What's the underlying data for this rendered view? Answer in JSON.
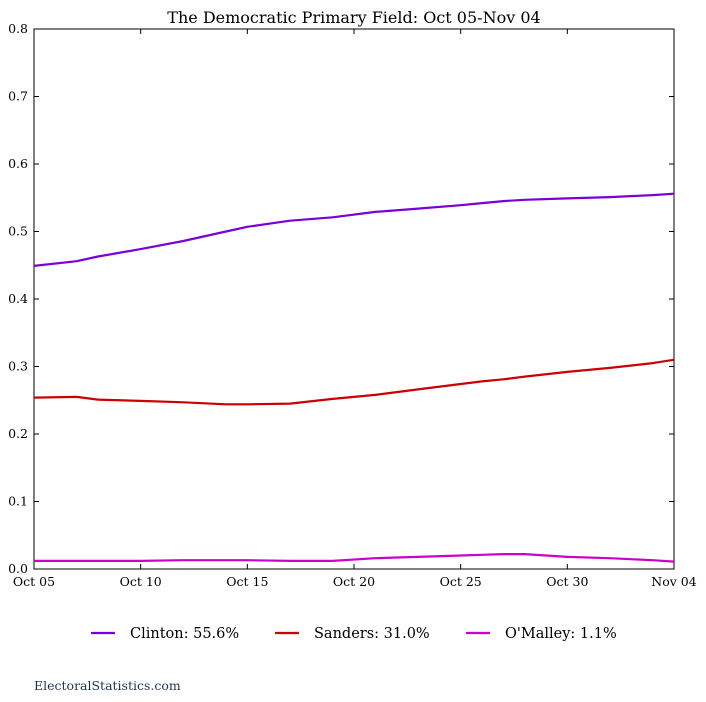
{
  "chart_data": {
    "type": "line",
    "title": "The Democratic Primary Field: Oct 05-Nov 04",
    "xlabel": "",
    "ylabel": "",
    "x_tick_labels": [
      "Oct 05",
      "Oct 10",
      "Oct 15",
      "Oct 20",
      "Oct 25",
      "Oct 30",
      "Nov 04"
    ],
    "x_tick_days": [
      0,
      5,
      10,
      15,
      20,
      25,
      30
    ],
    "xlim_days": [
      0,
      30
    ],
    "ylim": [
      0.0,
      0.8
    ],
    "y_ticks": [
      "0.0",
      "0.1",
      "0.2",
      "0.3",
      "0.4",
      "0.5",
      "0.6",
      "0.7",
      "0.8"
    ],
    "grid": false,
    "legend_position": "bottom-center",
    "x": [
      "Oct 05",
      "Oct 07",
      "Oct 08",
      "Oct 10",
      "Oct 12",
      "Oct 14",
      "Oct 15",
      "Oct 17",
      "Oct 19",
      "Oct 21",
      "Oct 23",
      "Oct 25",
      "Oct 26",
      "Oct 27",
      "Oct 28",
      "Oct 30",
      "Nov 01",
      "Nov 03",
      "Nov 04"
    ],
    "series": [
      {
        "name": "Clinton: 55.6%",
        "color": "#7a00d6",
        "values": [
          0.449,
          0.456,
          0.463,
          0.474,
          0.486,
          0.5,
          0.507,
          0.516,
          0.521,
          0.529,
          0.534,
          0.539,
          0.542,
          0.545,
          0.547,
          0.549,
          0.551,
          0.554,
          0.556
        ]
      },
      {
        "name": "Sanders: 31.0%",
        "color": "#cc0000",
        "values": [
          0.254,
          0.255,
          0.251,
          0.249,
          0.247,
          0.244,
          0.244,
          0.245,
          0.252,
          0.258,
          0.266,
          0.274,
          0.278,
          0.281,
          0.285,
          0.292,
          0.298,
          0.305,
          0.31
        ]
      },
      {
        "name": "O'Malley: 1.1%",
        "color": "#cc00cc",
        "values": [
          0.012,
          0.012,
          0.012,
          0.012,
          0.013,
          0.013,
          0.013,
          0.012,
          0.012,
          0.016,
          0.018,
          0.02,
          0.021,
          0.022,
          0.022,
          0.018,
          0.016,
          0.013,
          0.011
        ]
      }
    ]
  },
  "footer": {
    "text": "ElectoralStatistics.com"
  }
}
